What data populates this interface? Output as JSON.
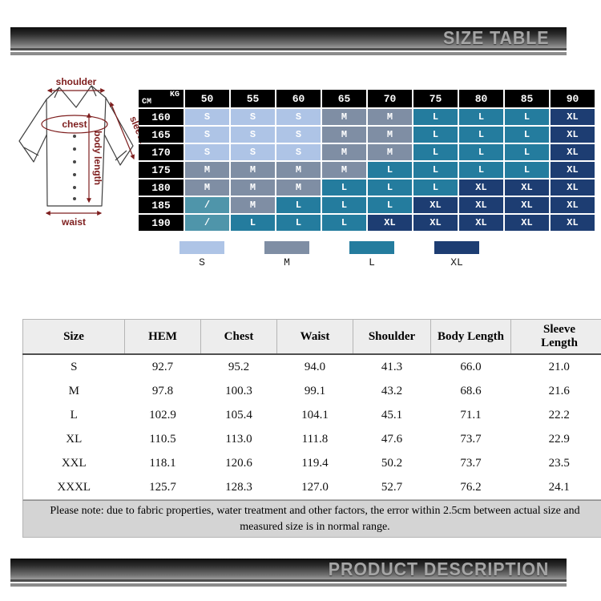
{
  "banners": {
    "top": "SIZE TABLE",
    "bottom": "PRODUCT DESCRIPTION"
  },
  "diagram": {
    "labels": {
      "shoulder": "shoulder",
      "chest": "chest",
      "sleeve": "sleeve",
      "body_length": "body length",
      "waist": "waist"
    },
    "line_color": "#7e1e1e"
  },
  "size_matrix": {
    "corner": {
      "top_right": "KG",
      "bottom_left": "CM"
    },
    "weight_columns": [
      "50",
      "55",
      "60",
      "65",
      "70",
      "75",
      "80",
      "85",
      "90"
    ],
    "height_rows": [
      "160",
      "165",
      "170",
      "175",
      "180",
      "185",
      "190"
    ],
    "cells": [
      [
        "S",
        "S",
        "S",
        "M",
        "M",
        "L",
        "L",
        "L",
        "XL"
      ],
      [
        "S",
        "S",
        "S",
        "M",
        "M",
        "L",
        "L",
        "L",
        "XL"
      ],
      [
        "S",
        "S",
        "S",
        "M",
        "M",
        "L",
        "L",
        "L",
        "XL"
      ],
      [
        "M",
        "M",
        "M",
        "M",
        "L",
        "L",
        "L",
        "L",
        "XL"
      ],
      [
        "M",
        "M",
        "M",
        "L",
        "L",
        "L",
        "XL",
        "XL",
        "XL"
      ],
      [
        "/",
        "M",
        "L",
        "L",
        "L",
        "XL",
        "XL",
        "XL",
        "XL"
      ],
      [
        "/",
        "L",
        "L",
        "L",
        "XL",
        "XL",
        "XL",
        "XL",
        "XL"
      ]
    ],
    "colors": {
      "S": "#aec4e6",
      "M": "#7f8ea4",
      "L": "#247c9e",
      "XL": "#1d3d72",
      "/": "#4f95aa",
      "header_bg": "#000000",
      "cell_text": "#ffffff"
    }
  },
  "legend": {
    "items": [
      {
        "label": "S",
        "color": "#aec4e6"
      },
      {
        "label": "M",
        "color": "#7f8ea4"
      },
      {
        "label": "L",
        "color": "#247c9e"
      },
      {
        "label": "XL",
        "color": "#1d3d72"
      }
    ]
  },
  "measurements": {
    "headers": [
      "Size",
      "HEM",
      "Chest",
      "Waist",
      "Shoulder",
      "Body Length",
      "Sleeve Length"
    ],
    "rows": [
      [
        "S",
        "92.7",
        "95.2",
        "94.0",
        "41.3",
        "66.0",
        "21.0"
      ],
      [
        "M",
        "97.8",
        "100.3",
        "99.1",
        "43.2",
        "68.6",
        "21.6"
      ],
      [
        "L",
        "102.9",
        "105.4",
        "104.1",
        "45.1",
        "71.1",
        "22.2"
      ],
      [
        "XL",
        "110.5",
        "113.0",
        "111.8",
        "47.6",
        "73.7",
        "22.9"
      ],
      [
        "XXL",
        "118.1",
        "120.6",
        "119.4",
        "50.2",
        "73.7",
        "23.5"
      ],
      [
        "XXXL",
        "125.7",
        "128.3",
        "127.0",
        "52.7",
        "76.2",
        "24.1"
      ]
    ],
    "note": "Please note: due to fabric properties, water treatment and other factors, the error within 2.5cm between actual size and measured size is in normal range."
  }
}
